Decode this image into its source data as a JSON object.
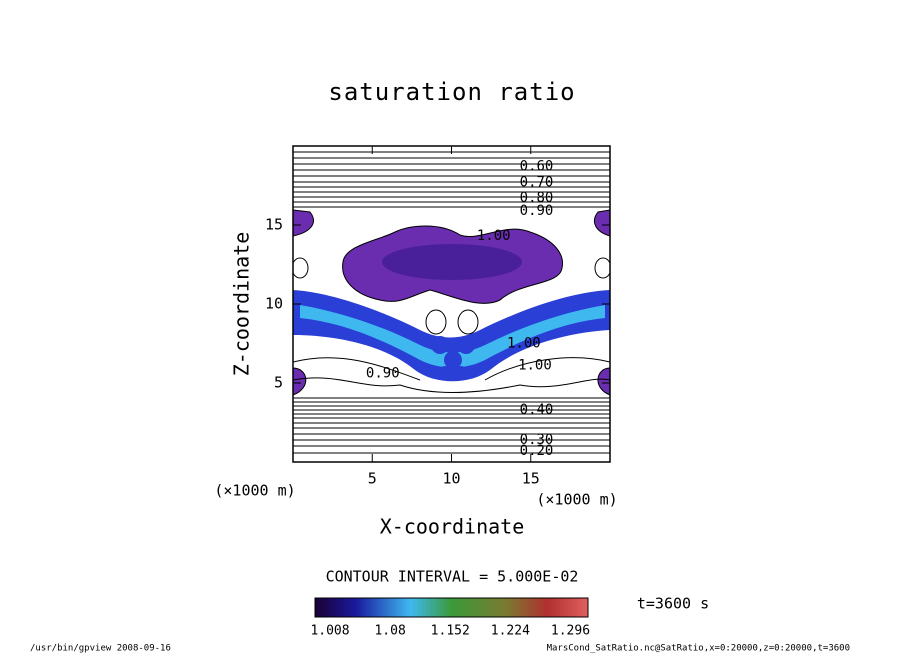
{
  "chart_data": {
    "type": "contour",
    "title": "saturation ratio",
    "xlabel": "X-coordinate",
    "ylabel": "Z-coordinate",
    "xunit": "(×1000 m)",
    "yunit": "(×1000 m)",
    "xlim": [
      0,
      20
    ],
    "ylim": [
      0,
      20
    ],
    "xticks": [
      5,
      10,
      15
    ],
    "yticks": [
      5,
      10,
      15
    ],
    "contour_interval": "CONTOUR INTERVAL = 5.000E-02",
    "time": "t=3600 s",
    "colorbar": {
      "clim": [
        0.99,
        1.317
      ],
      "ticks": [
        1.008,
        1.08,
        1.152,
        1.224,
        1.296
      ]
    },
    "contour_labels": [
      {
        "x": 14.3,
        "z": 18.7,
        "text": "0.60"
      },
      {
        "x": 14.3,
        "z": 17.7,
        "text": "0.70"
      },
      {
        "x": 14.3,
        "z": 16.7,
        "text": "0.80"
      },
      {
        "x": 14.3,
        "z": 15.9,
        "text": "0.90"
      },
      {
        "x": 11.6,
        "z": 14.3,
        "text": "1.00"
      },
      {
        "x": 13.5,
        "z": 7.5,
        "text": "1.00"
      },
      {
        "x": 14.2,
        "z": 6.1,
        "text": "1.00"
      },
      {
        "x": 4.6,
        "z": 5.6,
        "text": "0.90"
      },
      {
        "x": 14.3,
        "z": 3.3,
        "text": "0.40"
      },
      {
        "x": 14.3,
        "z": 1.4,
        "text": "0.30"
      },
      {
        "x": 14.3,
        "z": 0.7,
        "text": "0.20"
      }
    ],
    "footer_left": "/usr/bin/gpview   2008-09-16",
    "footer_right": "MarsCond_SatRatio.nc@SatRatio,x=0:20000,z=0:20000,t=3600"
  }
}
